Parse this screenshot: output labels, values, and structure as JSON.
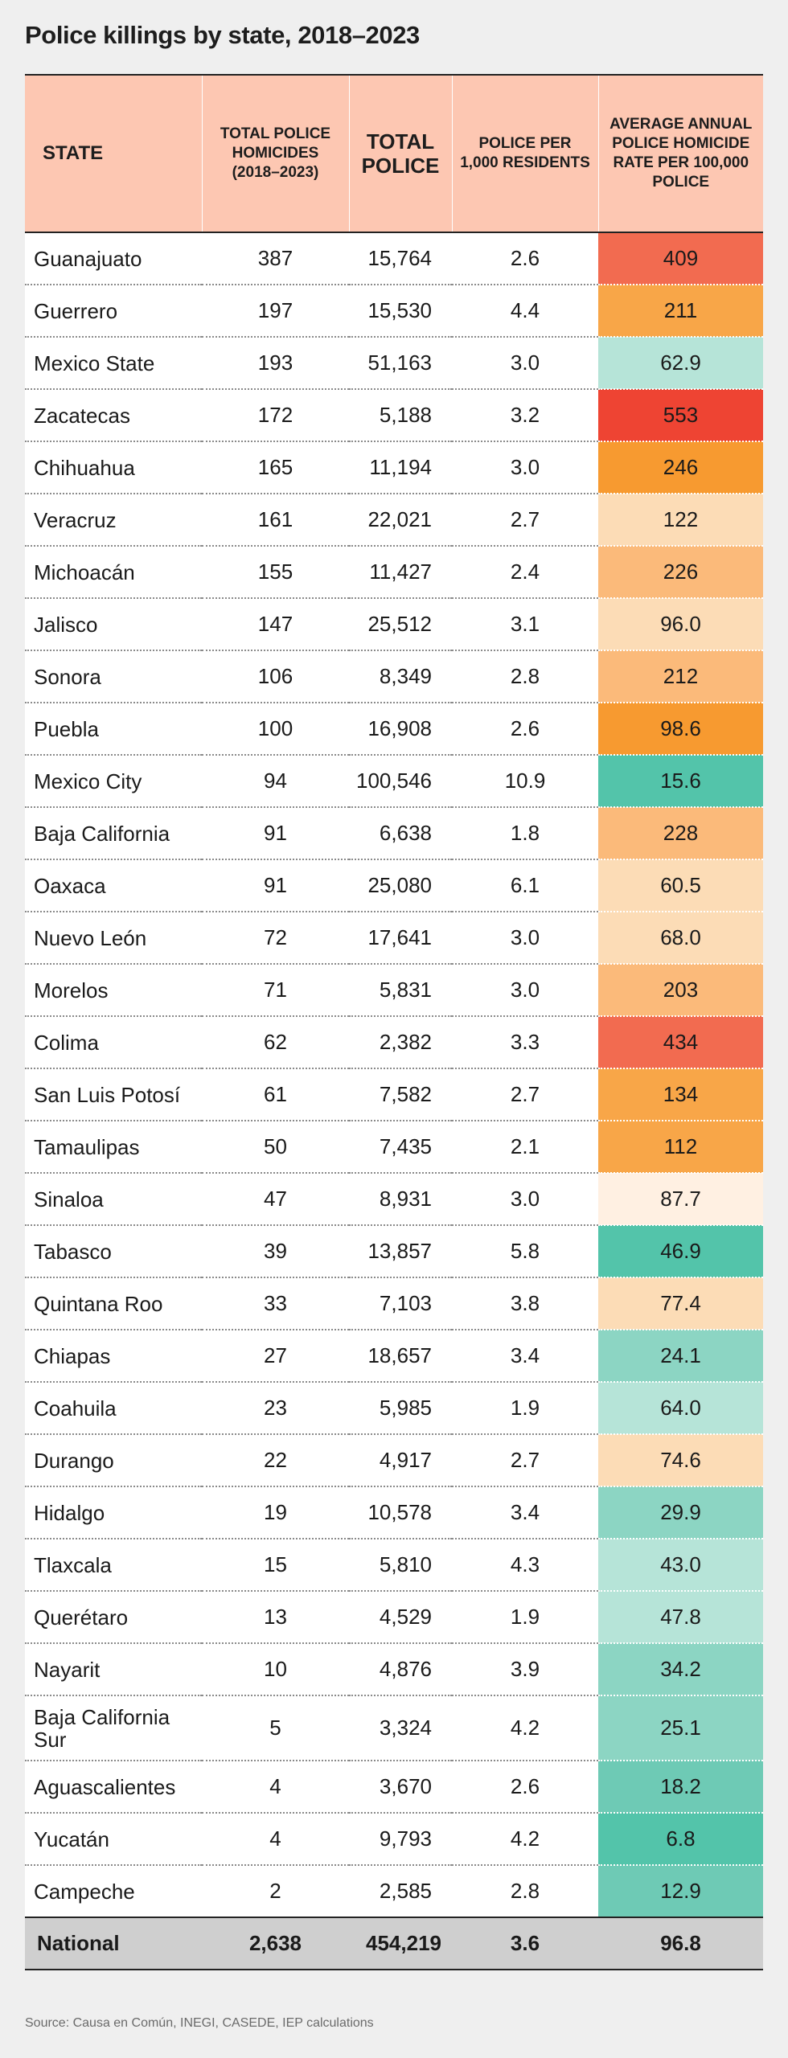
{
  "colors": {
    "header_bg": "#fdc7b2",
    "footer_bg": "#cfcfcf",
    "scale": {
      "red_deep": "#ee4433",
      "red": "#f26b50",
      "orange_deep": "#f79a30",
      "orange": "#f8a648",
      "orange_light": "#fbba7a",
      "peach": "#fcdcb6",
      "cream": "#fff0e2",
      "teal_deep": "#53c4aa",
      "teal": "#6ecab5",
      "teal_mid": "#8cd5c3",
      "teal_light": "#b6e4d8"
    }
  },
  "chart_data": {
    "type": "table",
    "title": "Police killings by state, 2018–2023",
    "columns": [
      "STATE",
      "TOTAL POLICE HOMICIDES (2018–2023)",
      "TOTAL POLICE",
      "POLICE PER 1,000 RESIDENTS",
      "AVERAGE ANNUAL POLICE HOMICIDE RATE PER 100,000 POLICE"
    ],
    "rows": [
      {
        "state": "Guanajuato",
        "homicides": "387",
        "police": "15,764",
        "per1000": "2.6",
        "rate": "409",
        "color": "#f26b50"
      },
      {
        "state": "Guerrero",
        "homicides": "197",
        "police": "15,530",
        "per1000": "4.4",
        "rate": "211",
        "color": "#f8a648"
      },
      {
        "state": "Mexico State",
        "homicides": "193",
        "police": "51,163",
        "per1000": "3.0",
        "rate": "62.9",
        "color": "#b6e4d8"
      },
      {
        "state": "Zacatecas",
        "homicides": "172",
        "police": "5,188",
        "per1000": "3.2",
        "rate": "553",
        "color": "#ee4433"
      },
      {
        "state": "Chihuahua",
        "homicides": "165",
        "police": "11,194",
        "per1000": "3.0",
        "rate": "246",
        "color": "#f79a30"
      },
      {
        "state": "Veracruz",
        "homicides": "161",
        "police": "22,021",
        "per1000": "2.7",
        "rate": "122",
        "color": "#fcdcb6"
      },
      {
        "state": "Michoacán",
        "homicides": "155",
        "police": "11,427",
        "per1000": "2.4",
        "rate": "226",
        "color": "#fbba7a"
      },
      {
        "state": "Jalisco",
        "homicides": "147",
        "police": "25,512",
        "per1000": "3.1",
        "rate": "96.0",
        "color": "#fcdcb6"
      },
      {
        "state": "Sonora",
        "homicides": "106",
        "police": "8,349",
        "per1000": "2.8",
        "rate": "212",
        "color": "#fbba7a"
      },
      {
        "state": "Puebla",
        "homicides": "100",
        "police": "16,908",
        "per1000": "2.6",
        "rate": "98.6",
        "color": "#f79a30"
      },
      {
        "state": "Mexico City",
        "homicides": "94",
        "police": "100,546",
        "per1000": "10.9",
        "rate": "15.6",
        "color": "#53c4aa"
      },
      {
        "state": "Baja California",
        "homicides": "91",
        "police": "6,638",
        "per1000": "1.8",
        "rate": "228",
        "color": "#fbba7a"
      },
      {
        "state": "Oaxaca",
        "homicides": "91",
        "police": "25,080",
        "per1000": "6.1",
        "rate": "60.5",
        "color": "#fcdcb6"
      },
      {
        "state": "Nuevo León",
        "homicides": "72",
        "police": "17,641",
        "per1000": "3.0",
        "rate": "68.0",
        "color": "#fcdcb6"
      },
      {
        "state": "Morelos",
        "homicides": "71",
        "police": "5,831",
        "per1000": "3.0",
        "rate": "203",
        "color": "#fbba7a"
      },
      {
        "state": "Colima",
        "homicides": "62",
        "police": "2,382",
        "per1000": "3.3",
        "rate": "434",
        "color": "#f26b50"
      },
      {
        "state": "San Luis Potosí",
        "homicides": "61",
        "police": "7,582",
        "per1000": "2.7",
        "rate": "134",
        "color": "#f8a648"
      },
      {
        "state": "Tamaulipas",
        "homicides": "50",
        "police": "7,435",
        "per1000": "2.1",
        "rate": "112",
        "color": "#f8a648"
      },
      {
        "state": "Sinaloa",
        "homicides": "47",
        "police": "8,931",
        "per1000": "3.0",
        "rate": "87.7",
        "color": "#fff0e2"
      },
      {
        "state": "Tabasco",
        "homicides": "39",
        "police": "13,857",
        "per1000": "5.8",
        "rate": "46.9",
        "color": "#53c4aa"
      },
      {
        "state": "Quintana Roo",
        "homicides": "33",
        "police": "7,103",
        "per1000": "3.8",
        "rate": "77.4",
        "color": "#fcdcb6"
      },
      {
        "state": "Chiapas",
        "homicides": "27",
        "police": "18,657",
        "per1000": "3.4",
        "rate": "24.1",
        "color": "#8cd5c3"
      },
      {
        "state": "Coahuila",
        "homicides": "23",
        "police": "5,985",
        "per1000": "1.9",
        "rate": "64.0",
        "color": "#b6e4d8"
      },
      {
        "state": "Durango",
        "homicides": "22",
        "police": "4,917",
        "per1000": "2.7",
        "rate": "74.6",
        "color": "#fcdcb6"
      },
      {
        "state": "Hidalgo",
        "homicides": "19",
        "police": "10,578",
        "per1000": "3.4",
        "rate": "29.9",
        "color": "#8cd5c3"
      },
      {
        "state": "Tlaxcala",
        "homicides": "15",
        "police": "5,810",
        "per1000": "4.3",
        "rate": "43.0",
        "color": "#b6e4d8"
      },
      {
        "state": "Querétaro",
        "homicides": "13",
        "police": "4,529",
        "per1000": "1.9",
        "rate": "47.8",
        "color": "#b6e4d8"
      },
      {
        "state": "Nayarit",
        "homicides": "10",
        "police": "4,876",
        "per1000": "3.9",
        "rate": "34.2",
        "color": "#8cd5c3"
      },
      {
        "state": "Baja California Sur",
        "homicides": "5",
        "police": "3,324",
        "per1000": "4.2",
        "rate": "25.1",
        "color": "#8cd5c3"
      },
      {
        "state": "Aguascalientes",
        "homicides": "4",
        "police": "3,670",
        "per1000": "2.6",
        "rate": "18.2",
        "color": "#6ecab5"
      },
      {
        "state": "Yucatán",
        "homicides": "4",
        "police": "9,793",
        "per1000": "4.2",
        "rate": "6.8",
        "color": "#53c4aa"
      },
      {
        "state": "Campeche",
        "homicides": "2",
        "police": "2,585",
        "per1000": "2.8",
        "rate": "12.9",
        "color": "#6ecab5"
      }
    ],
    "total": {
      "state": "National",
      "homicides": "2,638",
      "police": "454,219",
      "per1000": "3.6",
      "rate": "96.8"
    }
  },
  "source": "Source: Causa en Común, INEGI, CASEDE, IEP calculations"
}
